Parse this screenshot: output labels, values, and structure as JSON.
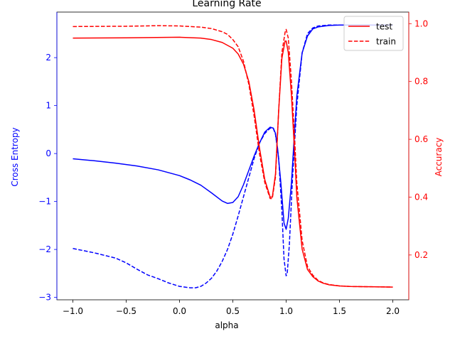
{
  "chart_data": {
    "type": "line",
    "title": "Learning Rate",
    "xlabel": "alpha",
    "ylabel_left": "Cross Entropy",
    "ylabel_right": "Accuracy",
    "xlim": [
      -1.15,
      2.15
    ],
    "ylim_left": [
      -3.05,
      2.95
    ],
    "ylim_right": [
      0.045,
      1.04
    ],
    "x_ticks": [
      -1.0,
      -0.5,
      0.0,
      0.5,
      1.0,
      1.5,
      2.0
    ],
    "x_tick_labels": [
      "−1.0",
      "−0.5",
      "0.0",
      "0.5",
      "1.0",
      "1.5",
      "2.0"
    ],
    "y_left_ticks": [
      -3,
      -2,
      -1,
      0,
      1,
      2
    ],
    "y_left_tick_labels": [
      "−3",
      "−2",
      "−1",
      "0",
      "1",
      "2"
    ],
    "y_right_ticks": [
      0.2,
      0.4,
      0.6,
      0.8,
      1.0
    ],
    "y_right_tick_labels": [
      "0.2",
      "0.4",
      "0.6",
      "0.8",
      "1.0"
    ],
    "grid": false,
    "legend_position": "top-right",
    "legend": [
      {
        "label": "test",
        "style": "solid"
      },
      {
        "label": "train",
        "style": "dashed"
      }
    ],
    "colors": {
      "left_axis": "#0000ff",
      "right_axis": "#ff0000"
    },
    "series": [
      {
        "axis": "left",
        "split": "test",
        "color": "#0000ff",
        "style": "solid",
        "x": [
          -1.0,
          -0.8,
          -0.6,
          -0.4,
          -0.2,
          0.0,
          0.1,
          0.2,
          0.3,
          0.4,
          0.45,
          0.5,
          0.55,
          0.6,
          0.65,
          0.7,
          0.75,
          0.8,
          0.85,
          0.88,
          0.9,
          0.92,
          0.95,
          0.98,
          1.0,
          1.02,
          1.05,
          1.08,
          1.1,
          1.15,
          1.2,
          1.25,
          1.3,
          1.4,
          1.5,
          1.6,
          1.8,
          2.0
        ],
        "y": [
          -0.11,
          -0.15,
          -0.2,
          -0.26,
          -0.34,
          -0.46,
          -0.55,
          -0.66,
          -0.82,
          -0.99,
          -1.04,
          -1.02,
          -0.9,
          -0.65,
          -0.35,
          -0.05,
          0.22,
          0.45,
          0.55,
          0.53,
          0.42,
          0.1,
          -0.6,
          -1.45,
          -1.58,
          -1.35,
          -0.6,
          0.5,
          1.2,
          2.1,
          2.45,
          2.6,
          2.64,
          2.67,
          2.68,
          2.68,
          2.68,
          2.68
        ]
      },
      {
        "axis": "left",
        "split": "train",
        "color": "#0000ff",
        "style": "dashed",
        "x": [
          -1.0,
          -0.8,
          -0.6,
          -0.5,
          -0.4,
          -0.3,
          -0.2,
          -0.1,
          0.0,
          0.1,
          0.15,
          0.2,
          0.25,
          0.3,
          0.35,
          0.4,
          0.45,
          0.5,
          0.55,
          0.6,
          0.65,
          0.7,
          0.75,
          0.8,
          0.85,
          0.88,
          0.9,
          0.93,
          0.96,
          0.98,
          1.0,
          1.01,
          1.03,
          1.06,
          1.1,
          1.15,
          1.2,
          1.25,
          1.3,
          1.4,
          1.5,
          1.6,
          1.8,
          2.0
        ],
        "y": [
          -1.98,
          -2.07,
          -2.18,
          -2.28,
          -2.41,
          -2.53,
          -2.61,
          -2.7,
          -2.77,
          -2.8,
          -2.8,
          -2.77,
          -2.7,
          -2.6,
          -2.45,
          -2.25,
          -2.0,
          -1.68,
          -1.3,
          -0.9,
          -0.5,
          -0.1,
          0.22,
          0.42,
          0.53,
          0.52,
          0.4,
          -0.1,
          -1.2,
          -2.2,
          -2.55,
          -2.5,
          -1.9,
          -0.5,
          1.0,
          2.1,
          2.5,
          2.62,
          2.66,
          2.68,
          2.68,
          2.68,
          2.68,
          2.68
        ]
      },
      {
        "axis": "right",
        "split": "test",
        "color": "#ff0000",
        "style": "solid",
        "x": [
          -1.0,
          -0.5,
          0.0,
          0.2,
          0.3,
          0.4,
          0.5,
          0.55,
          0.6,
          0.65,
          0.7,
          0.75,
          0.8,
          0.85,
          0.87,
          0.9,
          0.93,
          0.96,
          0.99,
          1.0,
          1.02,
          1.05,
          1.08,
          1.1,
          1.15,
          1.2,
          1.25,
          1.3,
          1.35,
          1.4,
          1.5,
          1.6,
          1.8,
          2.0
        ],
        "y": [
          0.95,
          0.951,
          0.953,
          0.95,
          0.945,
          0.935,
          0.915,
          0.895,
          0.86,
          0.8,
          0.7,
          0.57,
          0.46,
          0.4,
          0.4,
          0.48,
          0.7,
          0.88,
          0.94,
          0.94,
          0.9,
          0.75,
          0.55,
          0.4,
          0.22,
          0.15,
          0.125,
          0.11,
          0.102,
          0.097,
          0.093,
          0.091,
          0.09,
          0.089
        ]
      },
      {
        "axis": "right",
        "split": "train",
        "color": "#ff0000",
        "style": "dashed",
        "x": [
          -1.0,
          -0.5,
          -0.2,
          0.0,
          0.2,
          0.3,
          0.4,
          0.45,
          0.5,
          0.55,
          0.6,
          0.65,
          0.7,
          0.75,
          0.8,
          0.85,
          0.87,
          0.9,
          0.93,
          0.96,
          0.99,
          1.0,
          1.02,
          1.05,
          1.08,
          1.1,
          1.15,
          1.2,
          1.25,
          1.3,
          1.35,
          1.4,
          1.5,
          1.6,
          1.8,
          2.0
        ],
        "y": [
          0.99,
          0.991,
          0.993,
          0.992,
          0.988,
          0.983,
          0.972,
          0.963,
          0.945,
          0.92,
          0.87,
          0.79,
          0.68,
          0.55,
          0.45,
          0.395,
          0.395,
          0.47,
          0.7,
          0.9,
          0.97,
          0.98,
          0.95,
          0.8,
          0.6,
          0.45,
          0.25,
          0.16,
          0.13,
          0.112,
          0.103,
          0.098,
          0.093,
          0.091,
          0.09,
          0.089
        ]
      }
    ]
  }
}
